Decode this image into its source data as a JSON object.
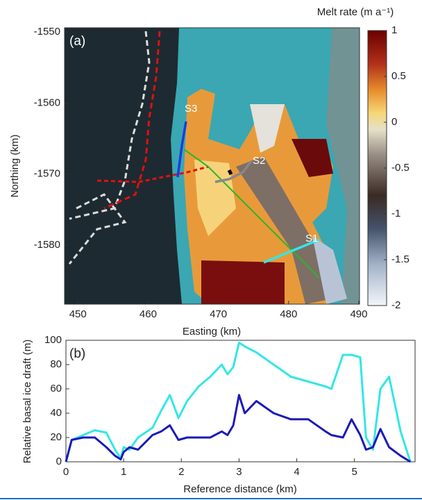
{
  "chart_data": [
    {
      "type": "map",
      "xlabel": "Easting (km)",
      "ylabel": "Northing (km)",
      "xlim": [
        448.1,
        490.1
      ],
      "xticks": [
        450,
        460,
        470,
        480,
        490
      ],
      "ylim": [
        -1588.3,
        -1549.4
      ],
      "yticks": [
        -1550,
        -1560,
        -1570,
        -1580
      ],
      "panel_label": "(a)",
      "transect_labels": [
        "S3",
        "S2",
        "S1"
      ],
      "colorbar": {
        "label": "Melt rate (m a⁻¹)",
        "lim": [
          -2,
          1
        ],
        "ticks": [
          1,
          0.5,
          0,
          -0.5,
          -1,
          -1.5,
          -2
        ]
      }
    },
    {
      "type": "line",
      "xlabel": "Reference distance (km)",
      "ylabel": "Relative basal ice draft (m)",
      "panel_label": "(b)",
      "xlim": [
        0,
        6.05
      ],
      "xticks": [
        0,
        1,
        2,
        3,
        4,
        5
      ],
      "ylim": [
        0,
        100
      ],
      "yticks": [
        0,
        20,
        40,
        60,
        80,
        100
      ],
      "x": [
        0,
        0.1,
        0.3,
        0.5,
        0.7,
        0.85,
        0.95,
        1.0,
        1.1,
        1.25,
        1.5,
        1.65,
        1.8,
        1.95,
        2.1,
        2.3,
        2.5,
        2.7,
        2.8,
        2.9,
        3.0,
        3.1,
        3.3,
        3.6,
        3.9,
        4.2,
        4.5,
        4.6,
        4.8,
        4.95,
        5.1,
        5.2,
        5.32,
        5.45,
        5.6,
        5.8,
        5.97
      ],
      "series": [
        {
          "color": "#33e6e6",
          "values": [
            0,
            18,
            22,
            26,
            24,
            10,
            3,
            12,
            10,
            20,
            28,
            42,
            55,
            36,
            50,
            62,
            70,
            80,
            72,
            78,
            98,
            95,
            90,
            80,
            70,
            66,
            62,
            60,
            88,
            88,
            86,
            20,
            10,
            60,
            70,
            25,
            0
          ]
        },
        {
          "color": "#1a1ab8",
          "values": [
            0,
            18,
            20,
            20,
            12,
            5,
            2,
            8,
            12,
            10,
            22,
            25,
            30,
            18,
            20,
            20,
            20,
            25,
            22,
            30,
            55,
            40,
            50,
            40,
            35,
            35,
            25,
            22,
            20,
            35,
            22,
            10,
            12,
            27,
            12,
            5,
            0
          ]
        }
      ]
    }
  ]
}
